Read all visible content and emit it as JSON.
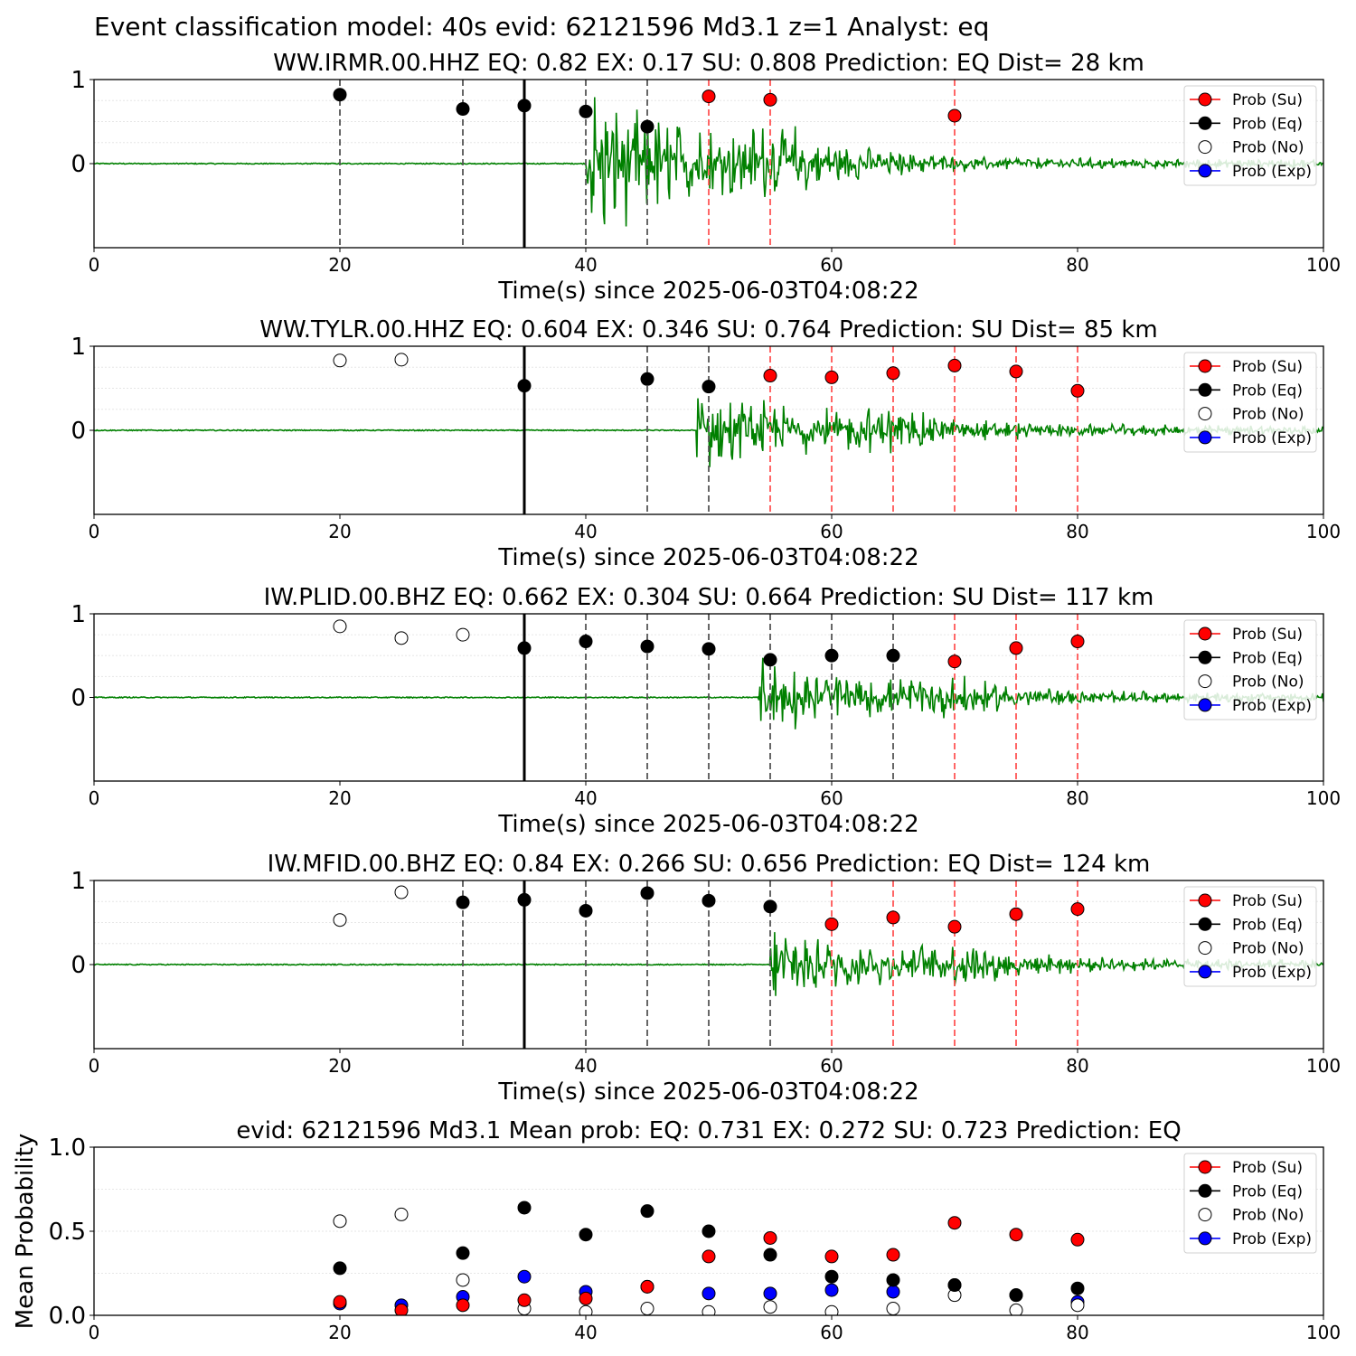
{
  "figure_title": "Event classification model: 40s evid: 62121596 Md3.1 z=1 Analyst: eq",
  "legend_labels": [
    "Prob (Su)",
    "Prob (Eq)",
    "Prob (No)",
    "Prob (Exp)"
  ],
  "colors": {
    "waveform": "#008000",
    "su": "#ff0000",
    "eq": "#000000",
    "no": "#ffffff",
    "exp": "#0000ff",
    "vline_eq": "#555555",
    "vline_su": "#ff5555",
    "pick": "#000000"
  },
  "chart_data": [
    {
      "type": "line",
      "title": "WW.IRMR.00.HHZ   EQ: 0.82  EX: 0.17  SU: 0.808   Prediction: EQ    Dist= 28 km",
      "xlabel": "Time(s) since 2025-06-03T04:08:22",
      "ylabel": "",
      "xlim": [
        0,
        100
      ],
      "ylim": [
        -1,
        1
      ],
      "xticks": [
        "0",
        "20",
        "40",
        "60",
        "80",
        "100"
      ],
      "yticks": [
        "0",
        "1"
      ],
      "pick_time": 35,
      "signal_onset": 40,
      "signal_amplitude": 1.0,
      "vlines_eq": [
        20,
        30,
        40,
        45
      ],
      "vlines_su": [
        50,
        55,
        70
      ],
      "points_su": [
        [
          50,
          0.8
        ],
        [
          55,
          0.76
        ],
        [
          70,
          0.57
        ]
      ],
      "points_eq": [
        [
          20,
          0.82
        ],
        [
          30,
          0.65
        ],
        [
          35,
          0.69
        ],
        [
          40,
          0.62
        ],
        [
          45,
          0.44
        ]
      ],
      "points_no": [],
      "points_exp": []
    },
    {
      "type": "line",
      "title": "WW.TYLR.00.HHZ   EQ: 0.604  EX: 0.346  SU: 0.764   Prediction: SU    Dist= 85 km",
      "xlabel": "Time(s) since 2025-06-03T04:08:22",
      "ylabel": "",
      "xlim": [
        0,
        100
      ],
      "ylim": [
        -1,
        1
      ],
      "xticks": [
        "0",
        "20",
        "40",
        "60",
        "80",
        "100"
      ],
      "yticks": [
        "0",
        "1"
      ],
      "pick_time": 35,
      "signal_onset": 49,
      "signal_amplitude": 0.55,
      "vlines_eq": [
        45,
        50
      ],
      "vlines_su": [
        55,
        60,
        65,
        70,
        75,
        80
      ],
      "points_su": [
        [
          55,
          0.65
        ],
        [
          60,
          0.63
        ],
        [
          65,
          0.68
        ],
        [
          70,
          0.77
        ],
        [
          75,
          0.7
        ],
        [
          80,
          0.47
        ]
      ],
      "points_eq": [
        [
          35,
          0.53
        ],
        [
          45,
          0.61
        ],
        [
          50,
          0.52
        ]
      ],
      "points_no": [
        [
          20,
          0.83
        ],
        [
          25,
          0.84
        ]
      ],
      "points_exp": []
    },
    {
      "type": "line",
      "title": "IW.PLID.00.BHZ   EQ: 0.662  EX: 0.304  SU: 0.664   Prediction: SU    Dist= 117 km",
      "xlabel": "Time(s) since 2025-06-03T04:08:22",
      "ylabel": "",
      "xlim": [
        0,
        100
      ],
      "ylim": [
        -1,
        1
      ],
      "xticks": [
        "0",
        "20",
        "40",
        "60",
        "80",
        "100"
      ],
      "yticks": [
        "0",
        "1"
      ],
      "pick_time": 35,
      "signal_onset": 54,
      "signal_amplitude": 0.45,
      "vlines_eq": [
        40,
        45,
        50,
        55,
        60,
        65
      ],
      "vlines_su": [
        70,
        75,
        80
      ],
      "points_su": [
        [
          70,
          0.43
        ],
        [
          75,
          0.59
        ],
        [
          80,
          0.67
        ]
      ],
      "points_eq": [
        [
          35,
          0.59
        ],
        [
          40,
          0.67
        ],
        [
          45,
          0.61
        ],
        [
          50,
          0.58
        ],
        [
          55,
          0.45
        ],
        [
          60,
          0.5
        ],
        [
          65,
          0.5
        ]
      ],
      "points_no": [
        [
          20,
          0.85
        ],
        [
          25,
          0.71
        ],
        [
          30,
          0.75
        ]
      ],
      "points_exp": []
    },
    {
      "type": "line",
      "title": "IW.MFID.00.BHZ   EQ: 0.84  EX: 0.266  SU: 0.656   Prediction: EQ    Dist= 124 km",
      "xlabel": "Time(s) since 2025-06-03T04:08:22",
      "ylabel": "",
      "xlim": [
        0,
        100
      ],
      "ylim": [
        -1,
        1
      ],
      "xticks": [
        "0",
        "20",
        "40",
        "60",
        "80",
        "100"
      ],
      "yticks": [
        "0",
        "1"
      ],
      "pick_time": 35,
      "signal_onset": 55,
      "signal_amplitude": 0.5,
      "vlines_eq": [
        30,
        40,
        45,
        50,
        55
      ],
      "vlines_su": [
        60,
        65,
        70,
        75,
        80
      ],
      "points_su": [
        [
          60,
          0.48
        ],
        [
          65,
          0.56
        ],
        [
          70,
          0.45
        ],
        [
          75,
          0.6
        ],
        [
          80,
          0.66
        ]
      ],
      "points_eq": [
        [
          30,
          0.74
        ],
        [
          35,
          0.77
        ],
        [
          40,
          0.64
        ],
        [
          45,
          0.85
        ],
        [
          50,
          0.76
        ],
        [
          55,
          0.69
        ]
      ],
      "points_no": [
        [
          20,
          0.53
        ],
        [
          25,
          0.86
        ]
      ],
      "points_exp": []
    },
    {
      "type": "scatter",
      "title": "evid: 62121596  Md3.1   Mean prob:   EQ: 0.731  EX: 0.272  SU: 0.723   Prediction: EQ",
      "xlabel": "",
      "ylabel": "Mean Probability",
      "xlim": [
        0,
        100
      ],
      "ylim": [
        0,
        1
      ],
      "xticks": [
        "0",
        "20",
        "40",
        "60",
        "80",
        "100"
      ],
      "yticks": [
        "0.0",
        "0.5",
        "1.0"
      ],
      "points_su": [
        [
          20,
          0.08
        ],
        [
          25,
          0.03
        ],
        [
          30,
          0.06
        ],
        [
          35,
          0.09
        ],
        [
          40,
          0.1
        ],
        [
          45,
          0.17
        ],
        [
          50,
          0.35
        ],
        [
          55,
          0.46
        ],
        [
          60,
          0.35
        ],
        [
          65,
          0.36
        ],
        [
          70,
          0.55
        ],
        [
          75,
          0.48
        ],
        [
          80,
          0.45
        ]
      ],
      "points_eq": [
        [
          20,
          0.28
        ],
        [
          30,
          0.37
        ],
        [
          35,
          0.64
        ],
        [
          40,
          0.48
        ],
        [
          45,
          0.62
        ],
        [
          50,
          0.5
        ],
        [
          55,
          0.36
        ],
        [
          60,
          0.23
        ],
        [
          65,
          0.21
        ],
        [
          70,
          0.18
        ],
        [
          75,
          0.12
        ],
        [
          80,
          0.16
        ]
      ],
      "points_no": [
        [
          20,
          0.56
        ],
        [
          25,
          0.6
        ],
        [
          30,
          0.21
        ],
        [
          35,
          0.04
        ],
        [
          40,
          0.02
        ],
        [
          45,
          0.04
        ],
        [
          50,
          0.02
        ],
        [
          55,
          0.05
        ],
        [
          60,
          0.02
        ],
        [
          65,
          0.04
        ],
        [
          70,
          0.12
        ],
        [
          75,
          0.03
        ],
        [
          80,
          0.06
        ]
      ],
      "points_exp": [
        [
          20,
          0.07
        ],
        [
          25,
          0.06
        ],
        [
          30,
          0.11
        ],
        [
          35,
          0.23
        ],
        [
          40,
          0.14
        ],
        [
          45,
          0.17
        ],
        [
          50,
          0.13
        ],
        [
          55,
          0.13
        ],
        [
          60,
          0.15
        ],
        [
          65,
          0.14
        ],
        [
          70,
          0.18
        ],
        [
          75,
          0.12
        ],
        [
          80,
          0.08
        ]
      ]
    }
  ]
}
